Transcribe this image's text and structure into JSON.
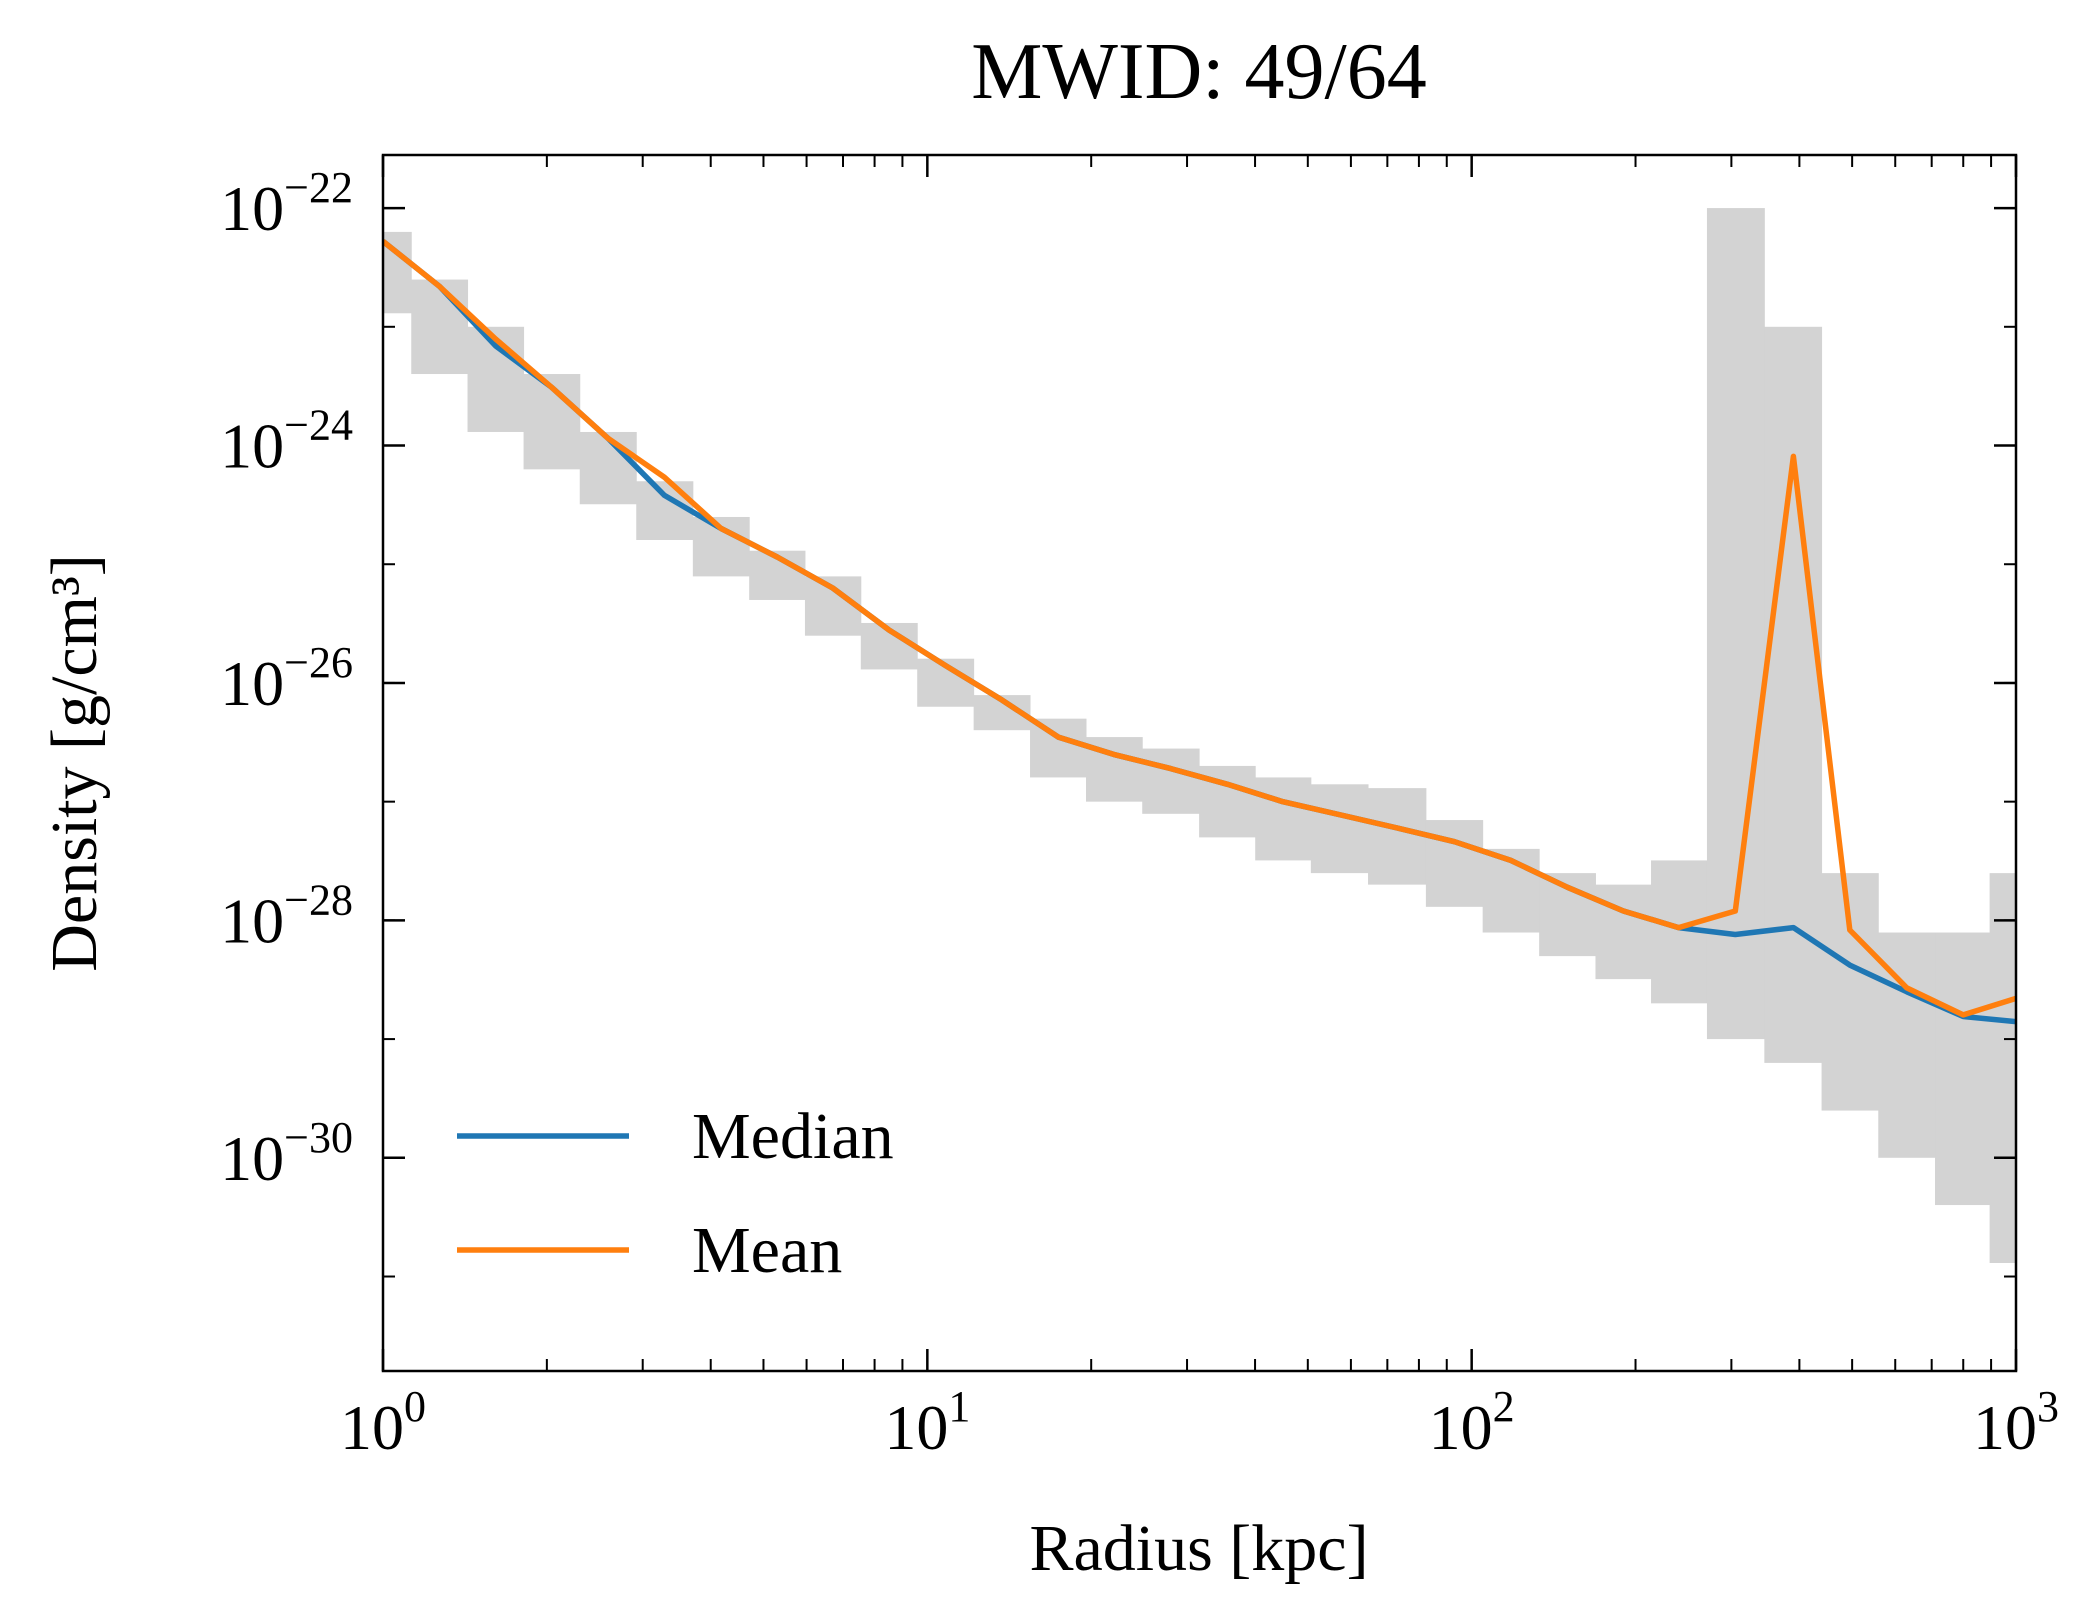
{
  "chart_data": {
    "type": "line",
    "title": "MWID: 49/64",
    "xlabel": "Radius [kpc]",
    "ylabel": "Density [g/cm³]",
    "log_x": true,
    "log_y": true,
    "xlim": [
      1,
      1000
    ],
    "ylim": [
      1.6e-32,
      2.8e-22
    ],
    "xticks": [
      {
        "value": 1,
        "base": "10",
        "exponent": "0"
      },
      {
        "value": 10,
        "base": "10",
        "exponent": "1"
      },
      {
        "value": 100,
        "base": "10",
        "exponent": "2"
      },
      {
        "value": 1000,
        "base": "10",
        "exponent": "3"
      }
    ],
    "yticks": [
      {
        "value": 1e-30,
        "base": "10",
        "exponent": "−30"
      },
      {
        "value": 1e-28,
        "base": "10",
        "exponent": "−28"
      },
      {
        "value": 1e-26,
        "base": "10",
        "exponent": "−26"
      },
      {
        "value": 1e-24,
        "base": "10",
        "exponent": "−24"
      },
      {
        "value": 1e-22,
        "base": "10",
        "exponent": "−22"
      }
    ],
    "legend": "lower left",
    "x": [
      1,
      1.27,
      1.61,
      2.04,
      2.59,
      3.29,
      4.18,
      5.3,
      6.7,
      8.5,
      10.8,
      13.7,
      17.4,
      22,
      28,
      35.6,
      45,
      57,
      73,
      93,
      118,
      150,
      190,
      240,
      305,
      390,
      495,
      630,
      800,
      1000
    ],
    "band": {
      "color": "#d3d3d3",
      "upper": [
        6.3e-23,
        2.5e-23,
        1e-23,
        4e-24,
        1.3e-24,
        5e-25,
        2.5e-25,
        1.3e-25,
        7.9e-26,
        3.2e-26,
        1.6e-26,
        7.9e-27,
        5e-27,
        3.5e-27,
        2.8e-27,
        2e-27,
        1.6e-27,
        1.4e-27,
        1.3e-27,
        7e-28,
        4e-28,
        2.5e-28,
        2e-28,
        3.2e-28,
        1e-22,
        1e-23,
        2.5e-28,
        7.9e-29,
        7.9e-29,
        2.5e-28
      ],
      "lower": [
        1.3e-23,
        4e-24,
        1.3e-24,
        6.3e-25,
        3.2e-25,
        1.6e-25,
        7.9e-26,
        5e-26,
        2.5e-26,
        1.3e-26,
        6.3e-27,
        4e-27,
        1.6e-27,
        1e-27,
        7.9e-28,
        5e-28,
        3.2e-28,
        2.5e-28,
        2e-28,
        1.3e-28,
        7.9e-29,
        5e-29,
        3.2e-29,
        2e-29,
        1e-29,
        6.3e-30,
        2.5e-30,
        1e-30,
        4e-31,
        1.3e-31
      ]
    },
    "series": [
      {
        "name": "Median",
        "color": "#1f77b4",
        "values": [
          5.25e-23,
          2.19e-23,
          6.9e-24,
          3.1e-24,
          1.15e-24,
          3.8e-25,
          2e-25,
          1.15e-25,
          6.3e-26,
          2.8e-26,
          1.4e-26,
          7.2e-27,
          3.5e-27,
          2.5e-27,
          1.9e-27,
          1.4e-27,
          1e-27,
          7.8e-28,
          6e-28,
          4.6e-28,
          3.2e-28,
          1.9e-28,
          1.2e-28,
          8.7e-29,
          7.6e-29,
          8.7e-29,
          4.2e-29,
          2.5e-29,
          1.55e-29,
          1.4e-29
        ]
      },
      {
        "name": "Mean",
        "color": "#ff7f0e",
        "values": [
          5.25e-23,
          2.19e-23,
          7.9e-24,
          3.1e-24,
          1.15e-24,
          5.4e-25,
          2e-25,
          1.15e-25,
          6.3e-26,
          2.8e-26,
          1.4e-26,
          7.2e-27,
          3.5e-27,
          2.5e-27,
          1.9e-27,
          1.4e-27,
          1e-27,
          7.8e-28,
          6e-28,
          4.6e-28,
          3.2e-28,
          1.9e-28,
          1.2e-28,
          8.7e-29,
          1.2e-28,
          8.1e-25,
          8.3e-29,
          2.7e-29,
          1.6e-29,
          2.2e-29
        ]
      }
    ]
  }
}
